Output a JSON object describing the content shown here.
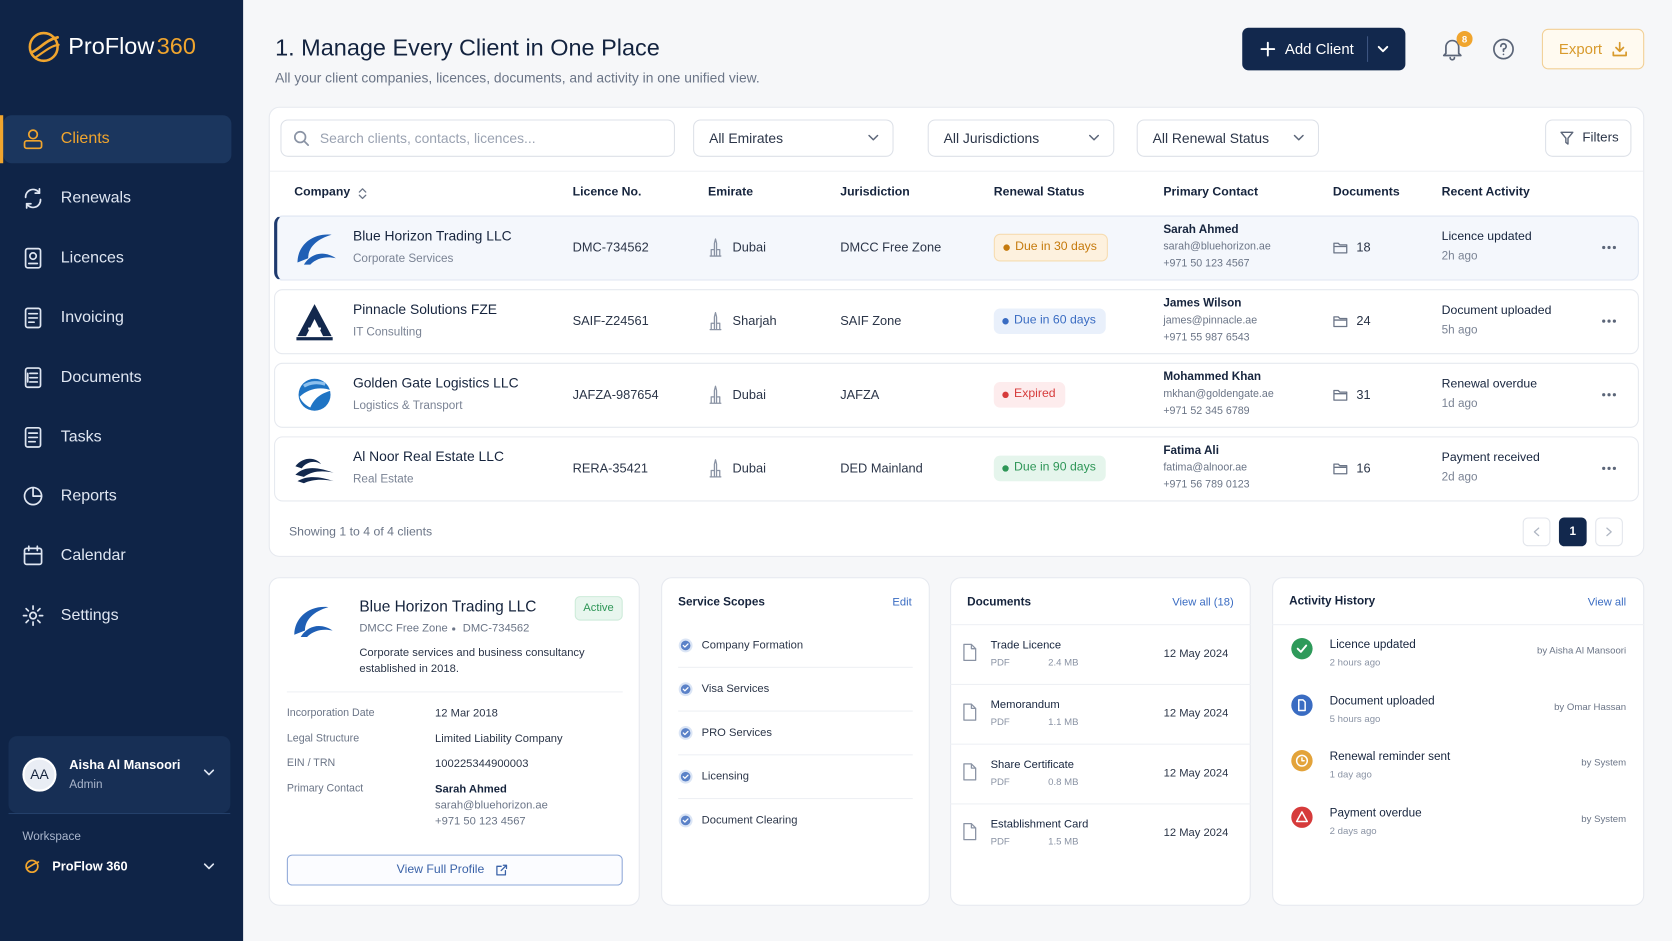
{
  "brand": {
    "name": "ProFlow",
    "suffix": "360"
  },
  "nav": [
    "Clients",
    "Renewals",
    "Licences",
    "Invoicing",
    "Documents",
    "Tasks",
    "Reports",
    "Calendar",
    "Settings"
  ],
  "user": {
    "initials": "AA",
    "name": "Aisha Al Mansoori",
    "role": "Admin"
  },
  "workspace": {
    "label": "Workspace",
    "name": "ProFlow 360"
  },
  "header": {
    "title": "1. Manage Every Client in One Place",
    "subtitle": "All your client companies, licences, documents, and activity in one unified view.",
    "add_button": "Add Client",
    "notifications": "8",
    "export": "Export"
  },
  "filters": {
    "search": "Search clients, contacts, licences...",
    "emirates": "All Emirates",
    "jurisdictions": "All Jurisdictions",
    "status": "All Renewal Status",
    "filters": "Filters"
  },
  "table": {
    "columns": [
      "Company",
      "Licence No.",
      "Emirate",
      "Jurisdiction",
      "Renewal Status",
      "Primary Contact",
      "Documents",
      "Recent Activity"
    ],
    "rows": [
      {
        "company": "Blue Horizon Trading LLC",
        "sector": "Corporate Services",
        "licence": "DMC-734562",
        "emirate": "Dubai",
        "jurisdiction": "DMCC Free Zone",
        "status": "Due in 30 days",
        "contact": "Sarah Ahmed",
        "email": "sarah@bluehorizon.ae",
        "phone": "+971 50 123 4567",
        "documents": "18",
        "activity": "Licence updated",
        "time": "2h ago"
      },
      {
        "company": "Pinnacle Solutions FZE",
        "sector": "IT Consulting",
        "licence": "SAIF-Z24561",
        "emirate": "Sharjah",
        "jurisdiction": "SAIF Zone",
        "status": "Due in 60 days",
        "contact": "James Wilson",
        "email": "james@pinnacle.ae",
        "phone": "+971 55 987 6543",
        "documents": "24",
        "activity": "Document uploaded",
        "time": "5h ago"
      },
      {
        "company": "Golden Gate Logistics LLC",
        "sector": "Logistics & Transport",
        "licence": "JAFZA-987654",
        "emirate": "Dubai",
        "jurisdiction": "JAFZA",
        "status": "Expired",
        "contact": "Mohammed Khan",
        "email": "mkhan@goldengate.ae",
        "phone": "+971 52 345 6789",
        "documents": "31",
        "activity": "Renewal overdue",
        "time": "1d ago"
      },
      {
        "company": "Al Noor Real Estate LLC",
        "sector": "Real Estate",
        "licence": "RERA-35421",
        "emirate": "Dubai",
        "jurisdiction": "DED Mainland",
        "status": "Due in 90 days",
        "contact": "Fatima Ali",
        "email": "fatima@alnoor.ae",
        "phone": "+971 56 789 0123",
        "documents": "16",
        "activity": "Payment received",
        "time": "2d ago"
      }
    ],
    "footer": "Showing 1 to 4 of 4 clients",
    "page": "1"
  },
  "profile": {
    "name": "Blue Horizon Trading LLC",
    "badge": "Active",
    "zone": "DMCC Free Zone",
    "licence": "DMC-734562",
    "description": "Corporate services and business consultancy established in 2018.",
    "fields": [
      {
        "label": "Incorporation Date",
        "value": "12 Mar 2018"
      },
      {
        "label": "Legal Structure",
        "value": "Limited Liability Company"
      },
      {
        "label": "EIN / TRN",
        "value": "100225344900003"
      },
      {
        "label": "Primary Contact",
        "value": "Sarah Ahmed"
      }
    ],
    "contact_email": "sarah@bluehorizon.ae",
    "contact_phone": "+971 50 123 4567",
    "button": "View Full Profile"
  },
  "service_scopes": {
    "title": "Service Scopes",
    "action": "Edit",
    "items": [
      "Company Formation",
      "Visa Services",
      "PRO Services",
      "Licensing",
      "Document Clearing"
    ]
  },
  "documents": {
    "title": "Documents",
    "action": "View all (18)",
    "items": [
      {
        "name": "Trade Licence",
        "type": "PDF",
        "size": "2.4 MB",
        "date": "12 May 2024"
      },
      {
        "name": "Memorandum",
        "type": "PDF",
        "size": "1.1 MB",
        "date": "12 May 2024"
      },
      {
        "name": "Share Certificate",
        "type": "PDF",
        "size": "0.8 MB",
        "date": "12 May 2024"
      },
      {
        "name": "Establishment Card",
        "type": "PDF",
        "size": "1.5 MB",
        "date": "12 May 2024"
      }
    ]
  },
  "activity": {
    "title": "Activity History",
    "action": "View all",
    "items": [
      {
        "title": "Licence updated",
        "time": "2 hours ago",
        "by": "by Aisha Al Mansoori"
      },
      {
        "title": "Document uploaded",
        "time": "5 hours ago",
        "by": "by Omar Hassan"
      },
      {
        "title": "Renewal reminder sent",
        "time": "1 day ago",
        "by": "by System"
      },
      {
        "title": "Payment overdue",
        "time": "2 days ago",
        "by": "by System"
      }
    ]
  }
}
